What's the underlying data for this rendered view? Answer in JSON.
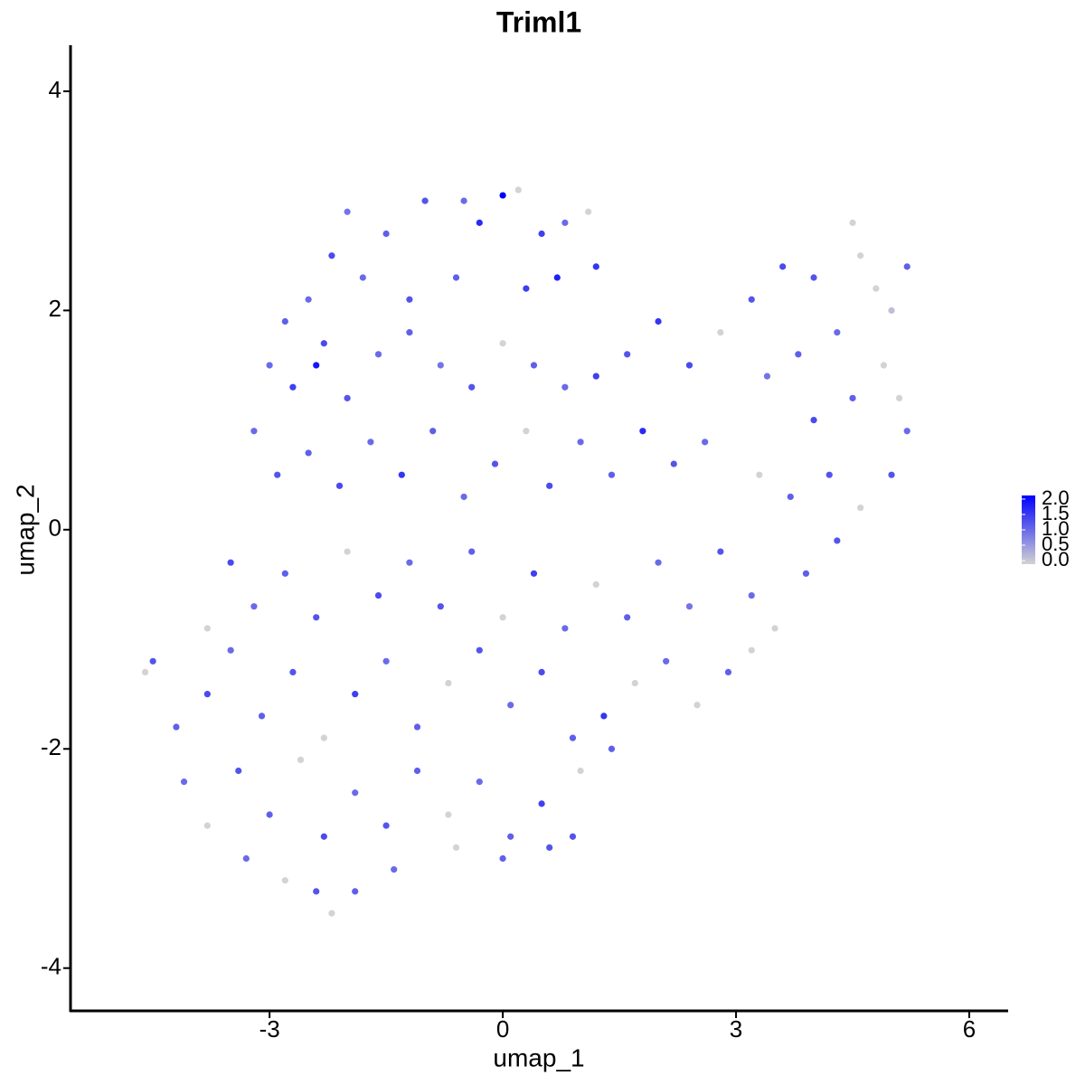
{
  "chart_data": {
    "type": "scatter",
    "title": "Triml1",
    "x_label": "umap_1",
    "y_label": "umap_2",
    "x": [
      -1.0,
      -0.5,
      0.0,
      0.2,
      -1.5,
      -2.2,
      -2.0,
      -0.3,
      0.5,
      0.8,
      1.2,
      1.1,
      -1.8,
      -1.2,
      -0.6,
      0.3,
      0.7,
      -2.5,
      -2.8,
      -2.3,
      -3.0,
      -2.7,
      -2.4,
      -2.0,
      -1.6,
      -1.2,
      -0.8,
      -0.4,
      0.0,
      0.4,
      0.8,
      1.2,
      1.6,
      2.0,
      2.4,
      2.8,
      3.2,
      3.6,
      4.0,
      4.5,
      4.6,
      4.8,
      5.0,
      5.2,
      4.3,
      3.8,
      3.4,
      4.9,
      5.1,
      4.5,
      4.0,
      -3.2,
      -2.9,
      -2.5,
      -2.1,
      -1.7,
      -1.3,
      -0.9,
      -0.5,
      -0.1,
      0.3,
      0.6,
      1.0,
      1.4,
      1.8,
      2.2,
      2.6,
      3.3,
      3.7,
      4.2,
      4.6,
      5.0,
      5.2,
      -3.5,
      -3.2,
      -2.8,
      -2.4,
      -2.0,
      -1.6,
      -1.2,
      -0.8,
      -0.4,
      0.0,
      0.4,
      0.8,
      1.2,
      1.6,
      2.0,
      2.4,
      2.8,
      3.2,
      3.5,
      3.9,
      4.3,
      -3.8,
      -4.6,
      -4.5,
      -4.2,
      -3.8,
      -3.5,
      -3.1,
      -2.7,
      -2.3,
      -1.9,
      -1.5,
      -1.1,
      -0.7,
      -0.3,
      0.1,
      0.5,
      0.9,
      1.3,
      1.7,
      2.1,
      2.5,
      2.9,
      3.2,
      -4.1,
      -3.8,
      -3.4,
      -3.0,
      -2.6,
      -2.3,
      -1.9,
      -1.5,
      -1.1,
      -0.7,
      -0.3,
      0.1,
      0.5,
      0.9,
      1.0,
      1.4,
      -3.3,
      -2.8,
      -2.4,
      -2.2,
      -1.9,
      -1.4,
      -0.6,
      0.0,
      0.6
    ],
    "y": [
      3.0,
      3.0,
      3.05,
      3.1,
      2.7,
      2.5,
      2.9,
      2.8,
      2.7,
      2.8,
      2.4,
      2.9,
      2.3,
      2.1,
      2.3,
      2.2,
      2.3,
      2.1,
      1.9,
      1.7,
      1.5,
      1.3,
      1.5,
      1.2,
      1.6,
      1.8,
      1.5,
      1.3,
      1.7,
      1.5,
      1.3,
      1.4,
      1.6,
      1.9,
      1.5,
      1.8,
      2.1,
      2.4,
      2.3,
      2.8,
      2.5,
      2.2,
      2.0,
      2.4,
      1.8,
      1.6,
      1.4,
      1.5,
      1.2,
      1.2,
      1.0,
      0.9,
      0.5,
      0.7,
      0.4,
      0.8,
      0.5,
      0.9,
      0.3,
      0.6,
      0.9,
      0.4,
      0.8,
      0.5,
      0.9,
      0.6,
      0.8,
      0.5,
      0.3,
      0.5,
      0.2,
      0.5,
      0.9,
      -0.3,
      -0.7,
      -0.4,
      -0.8,
      -0.2,
      -0.6,
      -0.3,
      -0.7,
      -0.2,
      -0.8,
      -0.4,
      -0.9,
      -0.5,
      -0.8,
      -0.3,
      -0.7,
      -0.2,
      -0.6,
      -0.9,
      -0.4,
      -0.1,
      -0.9,
      -1.3,
      -1.2,
      -1.8,
      -1.5,
      -1.1,
      -1.7,
      -1.3,
      -1.9,
      -1.5,
      -1.2,
      -1.8,
      -1.4,
      -1.1,
      -1.6,
      -1.3,
      -1.9,
      -1.7,
      -1.4,
      -1.2,
      -1.6,
      -1.3,
      -1.1,
      -2.3,
      -2.7,
      -2.2,
      -2.6,
      -2.1,
      -2.8,
      -2.4,
      -2.7,
      -2.2,
      -2.6,
      -2.3,
      -2.8,
      -2.5,
      -2.8,
      -2.2,
      -2.0,
      -3.0,
      -3.2,
      -3.3,
      -3.5,
      -3.3,
      -3.1,
      -2.9,
      -3.0,
      -2.9
    ],
    "values": [
      1.2,
      1.0,
      2.0,
      0.0,
      1.1,
      1.3,
      0.9,
      1.6,
      1.4,
      1.0,
      1.5,
      0.0,
      1.0,
      1.2,
      1.1,
      1.4,
      1.7,
      1.0,
      1.1,
      1.3,
      1.0,
      1.4,
      1.8,
      1.2,
      1.0,
      1.1,
      0.9,
      1.2,
      0.0,
      1.1,
      1.0,
      1.4,
      1.2,
      1.5,
      1.3,
      0.0,
      1.2,
      1.3,
      1.2,
      0.0,
      0.0,
      0.0,
      0.2,
      1.1,
      1.0,
      1.1,
      0.9,
      0.0,
      0.0,
      1.1,
      1.3,
      1.0,
      1.2,
      1.1,
      1.3,
      1.0,
      1.5,
      1.1,
      1.0,
      1.2,
      0.0,
      1.3,
      1.0,
      1.1,
      1.6,
      1.2,
      1.0,
      0.0,
      1.1,
      1.2,
      0.0,
      1.2,
      1.0,
      1.3,
      1.0,
      1.1,
      1.2,
      0.0,
      1.3,
      1.0,
      1.2,
      1.1,
      0.0,
      1.4,
      1.0,
      0.0,
      1.1,
      1.0,
      0.9,
      1.2,
      1.0,
      0.0,
      1.1,
      1.2,
      0.0,
      0.0,
      1.2,
      1.1,
      1.3,
      1.0,
      1.1,
      1.2,
      0.0,
      1.4,
      1.0,
      1.1,
      0.0,
      1.2,
      1.0,
      1.3,
      1.1,
      1.5,
      0.0,
      1.0,
      0.0,
      1.1,
      0.0,
      1.0,
      0.0,
      1.2,
      1.1,
      0.0,
      1.3,
      1.0,
      1.2,
      1.1,
      0.0,
      1.0,
      1.1,
      1.4,
      1.2,
      0.0,
      1.1,
      1.0,
      0.0,
      1.2,
      0.0,
      1.1,
      1.0,
      0.0,
      1.1,
      1.2
    ],
    "color_low": "#d3d3d3",
    "color_high": "#0000ff",
    "xlim": [
      -5.56,
      6.5
    ],
    "ylim": [
      -4.39,
      4.42
    ],
    "xticks": [
      -3,
      0,
      3,
      6
    ],
    "yticks": [
      -4,
      -2,
      0,
      2,
      4
    ],
    "colorbar": {
      "lim": [
        0,
        2
      ],
      "ticks": [
        {
          "value": 0,
          "label": "0.0"
        },
        {
          "value": 0.5,
          "label": "0.5"
        },
        {
          "value": 1,
          "label": "1.0"
        },
        {
          "value": 1.5,
          "label": "1.5"
        },
        {
          "value": 2,
          "label": "2.0"
        }
      ]
    }
  }
}
